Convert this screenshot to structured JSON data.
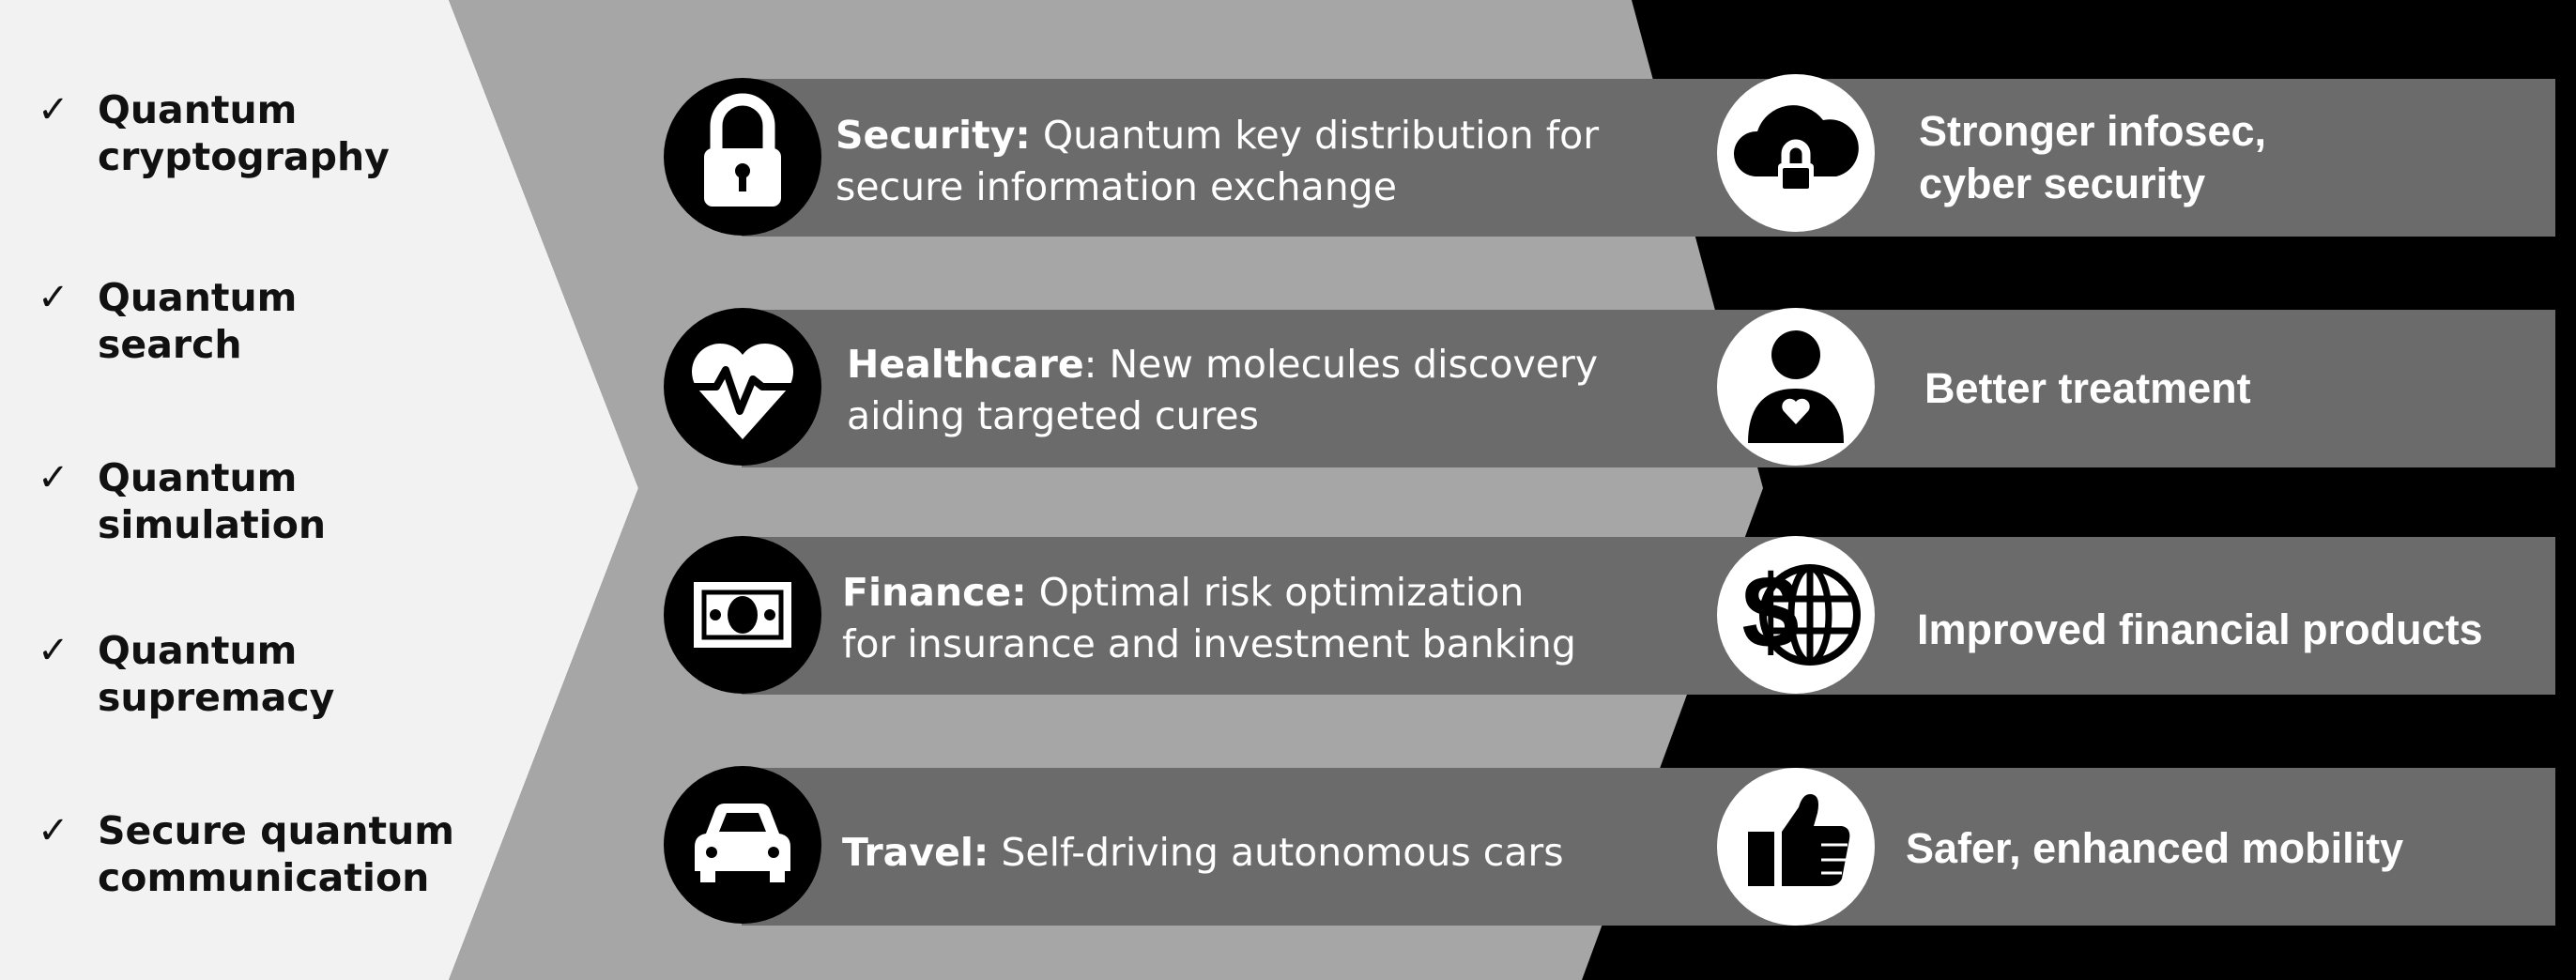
{
  "checklist": [
    {
      "text": "Quantum\ncryptography"
    },
    {
      "text": "Quantum\nsearch"
    },
    {
      "text": "Quantum\nsimulation"
    },
    {
      "text": "Quantum\nsupremacy"
    },
    {
      "text": "Secure quantum\ncommunication"
    }
  ],
  "check_symbol": "✓",
  "rows": [
    {
      "label": "Security:",
      "line1": " Quantum key distribution for",
      "line2": "secure information exchange",
      "icon": "lock-icon",
      "result": "Stronger infosec,\ncyber security",
      "result_icon": "cloud-lock-icon"
    },
    {
      "label": "Healthcare",
      "line1": ": New molecules discovery",
      "line2": "aiding targeted cures",
      "icon": "heart-pulse-icon",
      "result": "Better treatment",
      "result_icon": "person-heart-icon"
    },
    {
      "label": "Finance:",
      "line1": " Optimal risk optimization",
      "line2": "for insurance and investment banking",
      "icon": "banknote-icon",
      "result": "Improved financial products",
      "result_icon": "dollar-globe-icon"
    },
    {
      "label": "Travel:",
      "line1": " Self-driving autonomous cars",
      "line2": "",
      "icon": "car-icon",
      "result": "Safer, enhanced mobility",
      "result_icon": "thumbs-up-icon"
    }
  ],
  "colors": {
    "left_panel": "#f2f2f2",
    "chevron": "#a6a6a6",
    "band": "#6b6b6b",
    "circle": "#000000",
    "background": "#000000",
    "text_dark": "#111111",
    "text_light": "#ffffff"
  }
}
